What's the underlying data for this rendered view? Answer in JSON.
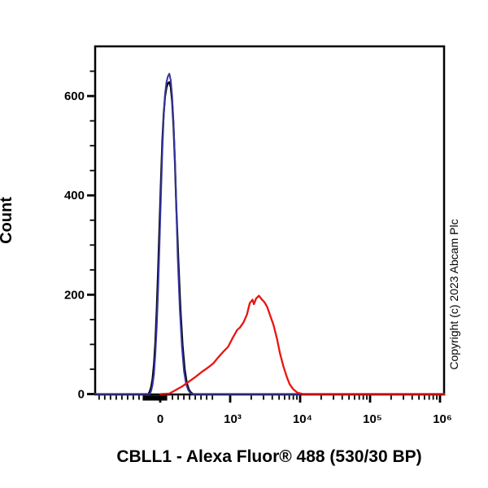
{
  "figure": {
    "xlabel": "CBLL1 - Alexa Fluor® 488 (530/30 BP)",
    "ylabel": "Count",
    "copyright": "Copyright (c) 2023 Abcam Plc"
  },
  "chart_data": {
    "type": "line",
    "subtype": "flow_cytometry_histogram",
    "title": "",
    "xlabel": "CBLL1 - Alexa Fluor® 488 (530/30 BP)",
    "ylabel": "Count",
    "x_scale": "logicle",
    "u_note": "u = axis position in decades relative to the 0 tick: 10^3 -> 1, 10^4 -> 2, 10^5 -> 3, 10^6 -> 4; negative u = compressed linear/negative region",
    "x_axis": {
      "major_ticks_u": [
        0,
        1,
        2,
        3,
        4
      ],
      "major_tick_labels": [
        "0",
        "10³",
        "10⁴",
        "10⁵",
        "10⁶"
      ],
      "minor_ticks_u": [
        -0.874,
        -0.793,
        -0.711,
        -0.629,
        -0.548,
        -0.466,
        -0.385,
        -0.303,
        0.175,
        0.256,
        0.338,
        0.42,
        0.501,
        0.583,
        0.664,
        0.746,
        1.301,
        1.477,
        1.602,
        1.699,
        1.778,
        1.845,
        1.903,
        1.954,
        2.301,
        2.477,
        2.602,
        2.699,
        2.778,
        2.845,
        2.903,
        2.954,
        3.301,
        3.477,
        3.602,
        3.699,
        3.778,
        3.845,
        3.903,
        3.954
      ],
      "cluster_ticks_u": [
        -0.233,
        -0.198,
        -0.163,
        -0.128,
        -0.093,
        -0.058,
        -0.023,
        0.012,
        0.047,
        0.082
      ],
      "xlim_u": [
        -0.93,
        4.06
      ]
    },
    "y_axis": {
      "major_ticks": [
        0,
        200,
        400,
        600
      ],
      "minor_ticks": [
        50,
        100,
        150,
        250,
        300,
        350,
        450,
        500,
        550,
        650
      ],
      "ylim": [
        0,
        700
      ]
    },
    "series": [
      {
        "name": "unlabelled-control-black",
        "color": "#000000",
        "stroke_width": 2.3,
        "points_u_count": [
          [
            -0.93,
            0
          ],
          [
            -0.17,
            0
          ],
          [
            -0.15,
            5
          ],
          [
            -0.13,
            14
          ],
          [
            -0.11,
            30
          ],
          [
            -0.09,
            60
          ],
          [
            -0.07,
            105
          ],
          [
            -0.05,
            170
          ],
          [
            -0.03,
            250
          ],
          [
            -0.01,
            340
          ],
          [
            0.01,
            430
          ],
          [
            0.03,
            510
          ],
          [
            0.05,
            565
          ],
          [
            0.07,
            600
          ],
          [
            0.09,
            617
          ],
          [
            0.11,
            626
          ],
          [
            0.13,
            628
          ],
          [
            0.15,
            618
          ],
          [
            0.17,
            590
          ],
          [
            0.19,
            540
          ],
          [
            0.21,
            465
          ],
          [
            0.23,
            375
          ],
          [
            0.26,
            265
          ],
          [
            0.29,
            170
          ],
          [
            0.32,
            98
          ],
          [
            0.35,
            50
          ],
          [
            0.38,
            22
          ],
          [
            0.41,
            9
          ],
          [
            0.44,
            3
          ],
          [
            0.47,
            0
          ],
          [
            4.06,
            0
          ]
        ]
      },
      {
        "name": "secondary-only-control-blue",
        "color": "#3434a0",
        "stroke_width": 2.0,
        "points_u_count": [
          [
            -0.93,
            0
          ],
          [
            -0.15,
            0
          ],
          [
            -0.13,
            6
          ],
          [
            -0.11,
            18
          ],
          [
            -0.09,
            40
          ],
          [
            -0.07,
            80
          ],
          [
            -0.05,
            135
          ],
          [
            -0.03,
            210
          ],
          [
            -0.01,
            300
          ],
          [
            0.01,
            400
          ],
          [
            0.03,
            490
          ],
          [
            0.05,
            560
          ],
          [
            0.07,
            605
          ],
          [
            0.09,
            628
          ],
          [
            0.11,
            640
          ],
          [
            0.13,
            645
          ],
          [
            0.15,
            632
          ],
          [
            0.17,
            600
          ],
          [
            0.19,
            548
          ],
          [
            0.21,
            470
          ],
          [
            0.23,
            375
          ],
          [
            0.25,
            275
          ],
          [
            0.28,
            170
          ],
          [
            0.31,
            95
          ],
          [
            0.34,
            46
          ],
          [
            0.37,
            20
          ],
          [
            0.4,
            8
          ],
          [
            0.43,
            2
          ],
          [
            0.46,
            0
          ],
          [
            4.06,
            0
          ]
        ]
      },
      {
        "name": "cbll1-stained-red",
        "color": "#e8150d",
        "stroke_width": 2.3,
        "points_u_count": [
          [
            0.0,
            0
          ],
          [
            0.13,
            1
          ],
          [
            0.22,
            8
          ],
          [
            0.31,
            15
          ],
          [
            0.41,
            25
          ],
          [
            0.5,
            34
          ],
          [
            0.59,
            44
          ],
          [
            0.69,
            54
          ],
          [
            0.76,
            62
          ],
          [
            0.83,
            74
          ],
          [
            0.9,
            85
          ],
          [
            0.97,
            95
          ],
          [
            1.04,
            114
          ],
          [
            1.1,
            129
          ],
          [
            1.14,
            134
          ],
          [
            1.19,
            144
          ],
          [
            1.24,
            160
          ],
          [
            1.28,
            183
          ],
          [
            1.32,
            190
          ],
          [
            1.34,
            181
          ],
          [
            1.37,
            192
          ],
          [
            1.41,
            198
          ],
          [
            1.45,
            191
          ],
          [
            1.49,
            185
          ],
          [
            1.53,
            175
          ],
          [
            1.57,
            159
          ],
          [
            1.62,
            139
          ],
          [
            1.67,
            111
          ],
          [
            1.71,
            83
          ],
          [
            1.76,
            56
          ],
          [
            1.81,
            34
          ],
          [
            1.85,
            20
          ],
          [
            1.9,
            10
          ],
          [
            1.96,
            3
          ],
          [
            2.04,
            0
          ],
          [
            4.06,
            0
          ]
        ]
      }
    ],
    "legend": "none",
    "grid": false
  }
}
